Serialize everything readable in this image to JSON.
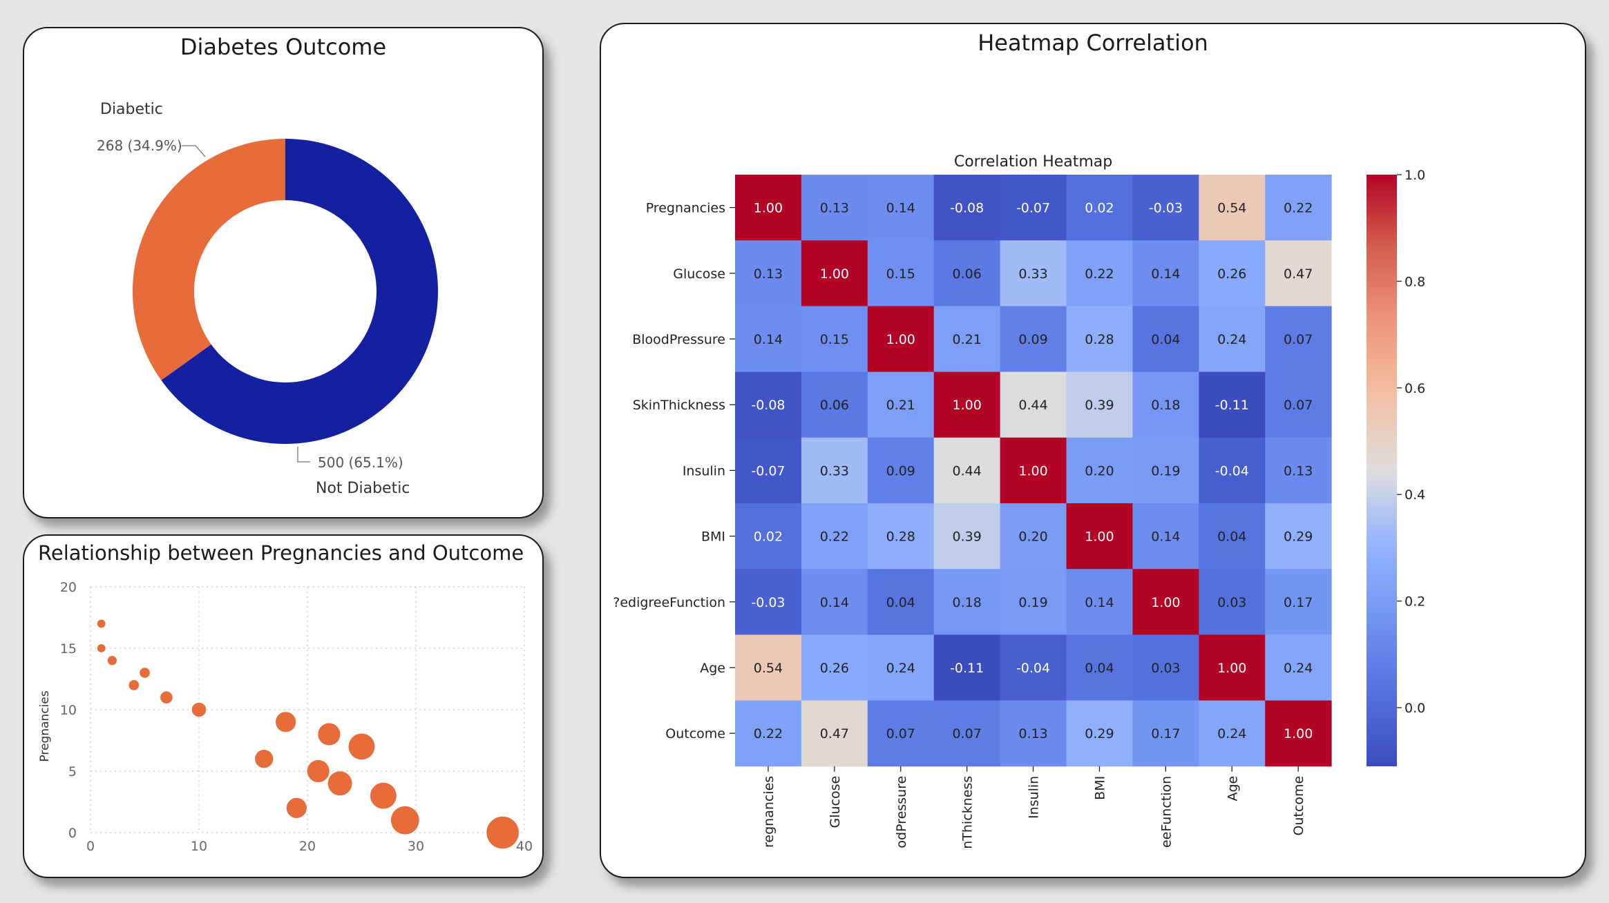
{
  "donut_card": {
    "title": "Diabetes Outcome"
  },
  "scatter_card": {
    "title": "Relationship between Pregnancies and Outcome"
  },
  "heatmap_card": {
    "title": "Heatmap Correlation"
  },
  "colors": {
    "diabetic": "#e86c3a",
    "not_diabetic": "#1520a0",
    "bubble": "#e86c3a"
  },
  "chart_data": [
    {
      "type": "pie",
      "variant": "donut",
      "slices": [
        {
          "label": "Diabetic",
          "value": 268,
          "data_label": "268 (34.9%)"
        },
        {
          "label": "Not Diabetic",
          "value": 500,
          "data_label": "500 (65.1%)"
        }
      ]
    },
    {
      "type": "scatter",
      "variant": "bubble",
      "title": "Relationship between Pregnancies and Outcome",
      "xlabel": "",
      "ylabel": "Pregnancies",
      "xlim": [
        0,
        40
      ],
      "ylim": [
        0,
        20
      ],
      "xticks": [
        0,
        10,
        20,
        30,
        40
      ],
      "yticks": [
        0,
        5,
        10,
        15,
        20
      ],
      "grid": true,
      "points": [
        {
          "x": 1,
          "y": 17,
          "size": 2
        },
        {
          "x": 1,
          "y": 15,
          "size": 2
        },
        {
          "x": 2,
          "y": 14,
          "size": 2.5
        },
        {
          "x": 4,
          "y": 12,
          "size": 3
        },
        {
          "x": 5,
          "y": 13,
          "size": 3
        },
        {
          "x": 7,
          "y": 11,
          "size": 4
        },
        {
          "x": 10,
          "y": 10,
          "size": 5
        },
        {
          "x": 16,
          "y": 6,
          "size": 7
        },
        {
          "x": 18,
          "y": 9,
          "size": 8
        },
        {
          "x": 19,
          "y": 2,
          "size": 8
        },
        {
          "x": 21,
          "y": 5,
          "size": 9
        },
        {
          "x": 22,
          "y": 8,
          "size": 9
        },
        {
          "x": 23,
          "y": 4,
          "size": 10
        },
        {
          "x": 25,
          "y": 7,
          "size": 11
        },
        {
          "x": 27,
          "y": 3,
          "size": 11
        },
        {
          "x": 29,
          "y": 1,
          "size": 12
        },
        {
          "x": 38,
          "y": 0,
          "size": 14
        }
      ]
    },
    {
      "type": "heatmap",
      "title": "Correlation Heatmap",
      "row_labels": [
        "Pregnancies",
        "Glucose",
        "BloodPressure",
        "SkinThickness",
        "Insulin",
        "BMI",
        "?edigreeFunction",
        "Age",
        "Outcome"
      ],
      "col_labels": [
        "regnancies",
        "Glucose",
        "odPressure",
        "nThickness",
        "Insulin",
        "BMI",
        "eeFunction",
        "Age",
        "Outcome"
      ],
      "values": [
        [
          1.0,
          0.13,
          0.14,
          -0.08,
          -0.07,
          0.02,
          -0.03,
          0.54,
          0.22
        ],
        [
          0.13,
          1.0,
          0.15,
          0.06,
          0.33,
          0.22,
          0.14,
          0.26,
          0.47
        ],
        [
          0.14,
          0.15,
          1.0,
          0.21,
          0.09,
          0.28,
          0.04,
          0.24,
          0.07
        ],
        [
          -0.08,
          0.06,
          0.21,
          1.0,
          0.44,
          0.39,
          0.18,
          -0.11,
          0.07
        ],
        [
          -0.07,
          0.33,
          0.09,
          0.44,
          1.0,
          0.2,
          0.19,
          -0.04,
          0.13
        ],
        [
          0.02,
          0.22,
          0.28,
          0.39,
          0.2,
          1.0,
          0.14,
          0.04,
          0.29
        ],
        [
          -0.03,
          0.14,
          0.04,
          0.18,
          0.19,
          0.14,
          1.0,
          0.03,
          0.17
        ],
        [
          0.54,
          0.26,
          0.24,
          -0.11,
          -0.04,
          0.04,
          0.03,
          1.0,
          0.24
        ],
        [
          0.22,
          0.47,
          0.07,
          0.07,
          0.13,
          0.29,
          0.17,
          0.24,
          1.0
        ]
      ],
      "value_labels": [
        [
          "1.00",
          "0.13",
          "0.14",
          "-0.08",
          "-0.07",
          "0.02",
          "-0.03",
          "0.54",
          "0.22"
        ],
        [
          "0.13",
          "1.00",
          "0.15",
          "0.06",
          "0.33",
          "0.22",
          "0.14",
          "0.26",
          "0.47"
        ],
        [
          "0.14",
          "0.15",
          "1.00",
          "0.21",
          "0.09",
          "0.28",
          "0.04",
          "0.24",
          "0.07"
        ],
        [
          "-0.08",
          "0.06",
          "0.21",
          "1.00",
          "0.44",
          "0.39",
          "0.18",
          "-0.11",
          "0.07"
        ],
        [
          "-0.07",
          "0.33",
          "0.09",
          "0.44",
          "1.00",
          "0.20",
          "0.19",
          "-0.04",
          "0.13"
        ],
        [
          "0.02",
          "0.22",
          "0.28",
          "0.39",
          "0.20",
          "1.00",
          "0.14",
          "0.04",
          "0.29"
        ],
        [
          "-0.03",
          "0.14",
          "0.04",
          "0.18",
          "0.19",
          "0.14",
          "1.00",
          "0.03",
          "0.17"
        ],
        [
          "0.54",
          "0.26",
          "0.24",
          "-0.11",
          "-0.04",
          "0.04",
          "0.03",
          "1.00",
          "0.24"
        ],
        [
          "0.22",
          "0.47",
          "0.07",
          "0.07",
          "0.13",
          "0.29",
          "0.17",
          "0.24",
          "1.00"
        ]
      ],
      "colormap": "coolwarm",
      "vmin": -0.11,
      "vmax": 1.0,
      "colorbar_ticks": [
        "1.0",
        "0.8",
        "0.6",
        "0.4",
        "0.2",
        "0.0"
      ],
      "colorbar_tick_values": [
        1.0,
        0.8,
        0.6,
        0.4,
        0.2,
        0.0
      ]
    }
  ]
}
